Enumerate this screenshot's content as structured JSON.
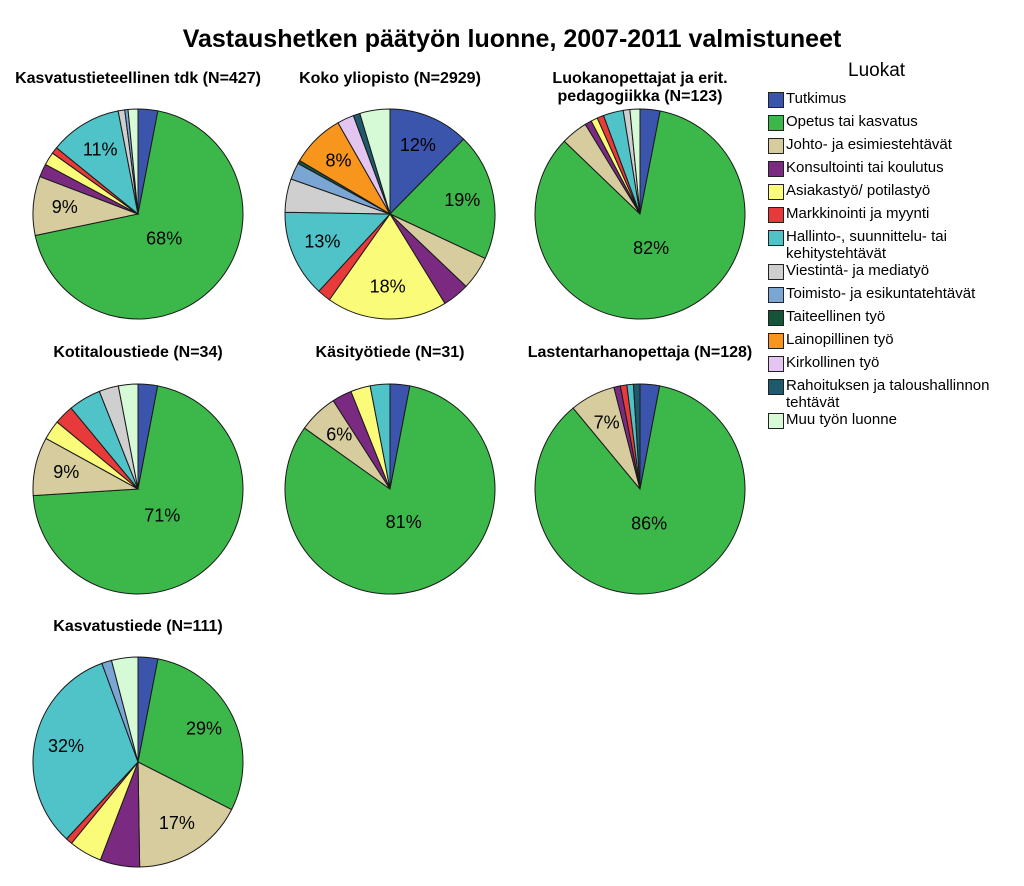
{
  "title": "Vastaushetken päätyön luonne, 2007-2011 valmistuneet",
  "legend": {
    "title": "Luokat",
    "items": [
      {
        "label": "Tutkimus",
        "color": "#3b55ad"
      },
      {
        "label": "Opetus tai kasvatus",
        "color": "#3cb84a"
      },
      {
        "label": "Johto- ja esimiestehtävät",
        "color": "#d6cc9e"
      },
      {
        "label": "Konsultointi tai koulutus",
        "color": "#7b2a82"
      },
      {
        "label": "Asiakastyö/ potilastyö",
        "color": "#fbfb7a"
      },
      {
        "label": "Markkinointi ja myynti",
        "color": "#e83a3a"
      },
      {
        "label": "Hallinto-, suunnittelu- tai kehitystehtävät",
        "color": "#4fc3c8"
      },
      {
        "label": "Viestintä- ja mediatyö",
        "color": "#cfcfcf"
      },
      {
        "label": "Toimisto- ja esikuntatehtävät",
        "color": "#7ba6d4"
      },
      {
        "label": "Taiteellinen työ",
        "color": "#16543a"
      },
      {
        "label": "Lainopillinen työ",
        "color": "#f7951d"
      },
      {
        "label": "Kirkollinen työ",
        "color": "#e2c5f0"
      },
      {
        "label": "Rahoituksen ja taloushallinnon tehtävät",
        "color": "#1e5a6c"
      },
      {
        "label": "Muu työn luonne",
        "color": "#d6fad6"
      }
    ]
  },
  "chart_data": [
    {
      "type": "pie",
      "title": "Kasvatustieteellinen tdk (N=427)",
      "categories": [
        "Tutkimus",
        "Opetus tai kasvatus",
        "Johto- ja esimiestehtävät",
        "Konsultointi tai koulutus",
        "Asiakastyö/ potilastyö",
        "Markkinointi ja myynti",
        "Hallinto-, suunnittelu- tai kehitystehtävät",
        "Viestintä- ja mediatyö",
        "Toimisto- ja esikuntatehtävät",
        "Taiteellinen työ",
        "Lainopillinen työ",
        "Kirkollinen työ",
        "Rahoituksen ja taloushallinnon tehtävät",
        "Muu työn luonne"
      ],
      "values": [
        3,
        68,
        9,
        2,
        2,
        1,
        11,
        1,
        0.5,
        0,
        0,
        0,
        0,
        1.5
      ],
      "labels": [
        "",
        "68%",
        "9%",
        "",
        "",
        "",
        "11%",
        "",
        "",
        "",
        "",
        "",
        "",
        ""
      ]
    },
    {
      "type": "pie",
      "title": "Koko yliopisto (N=2929)",
      "categories": [
        "Tutkimus",
        "Opetus tai kasvatus",
        "Johto- ja esimiestehtävät",
        "Konsultointi tai koulutus",
        "Asiakastyö/ potilastyö",
        "Markkinointi ja myynti",
        "Hallinto-, suunnittelu- tai kehitystehtävät",
        "Viestintä- ja mediatyö",
        "Toimisto- ja esikuntatehtävät",
        "Taiteellinen työ",
        "Lainopillinen työ",
        "Kirkollinen työ",
        "Rahoituksen ja taloushallinnon tehtävät",
        "Muu työn luonne"
      ],
      "values": [
        12,
        19,
        5,
        4,
        18,
        2,
        13,
        5,
        2.5,
        0.5,
        8,
        2.5,
        1,
        4.5
      ],
      "labels": [
        "12%",
        "19%",
        "",
        "",
        "18%",
        "",
        "13%",
        "",
        "",
        "",
        "8%",
        "",
        "",
        ""
      ]
    },
    {
      "type": "pie",
      "title": "Luokanopettajat ja erit. pedagogiikka (N=123)",
      "categories": [
        "Tutkimus",
        "Opetus tai kasvatus",
        "Johto- ja esimiestehtävät",
        "Konsultointi tai koulutus",
        "Asiakastyö/ potilastyö",
        "Markkinointi ja myynti",
        "Hallinto-, suunnittelu- tai kehitystehtävät",
        "Viestintä- ja mediatyö",
        "Toimisto- ja esikuntatehtävät",
        "Taiteellinen työ",
        "Lainopillinen työ",
        "Kirkollinen työ",
        "Rahoituksen ja taloushallinnon tehtävät",
        "Muu työn luonne"
      ],
      "values": [
        3,
        82,
        4,
        1,
        1,
        1,
        3,
        1,
        0,
        0,
        0,
        0,
        0,
        1.5
      ],
      "labels": [
        "",
        "82%",
        "",
        "",
        "",
        "",
        "",
        "",
        "",
        "",
        "",
        "",
        "",
        ""
      ]
    },
    {
      "type": "pie",
      "title": "Kotitaloustiede (N=34)",
      "categories": [
        "Tutkimus",
        "Opetus tai kasvatus",
        "Johto- ja esimiestehtävät",
        "Konsultointi tai koulutus",
        "Asiakastyö/ potilastyö",
        "Markkinointi ja myynti",
        "Hallinto-, suunnittelu- tai kehitystehtävät",
        "Viestintä- ja mediatyö",
        "Toimisto- ja esikuntatehtävät",
        "Taiteellinen työ",
        "Lainopillinen työ",
        "Kirkollinen työ",
        "Rahoituksen ja taloushallinnon tehtävät",
        "Muu työn luonne"
      ],
      "values": [
        3,
        71,
        9,
        0,
        3,
        3,
        5,
        3,
        0,
        0,
        0,
        0,
        0,
        3
      ],
      "labels": [
        "",
        "71%",
        "9%",
        "",
        "",
        "",
        "",
        "",
        "",
        "",
        "",
        "",
        "",
        ""
      ]
    },
    {
      "type": "pie",
      "title": "Käsityötiede (N=31)",
      "categories": [
        "Tutkimus",
        "Opetus tai kasvatus",
        "Johto- ja esimiestehtävät",
        "Konsultointi tai koulutus",
        "Asiakastyö/ potilastyö",
        "Markkinointi ja myynti",
        "Hallinto-, suunnittelu- tai kehitystehtävät",
        "Viestintä- ja mediatyö",
        "Toimisto- ja esikuntatehtävät",
        "Taiteellinen työ",
        "Lainopillinen työ",
        "Kirkollinen työ",
        "Rahoituksen ja taloushallinnon tehtävät",
        "Muu työn luonne"
      ],
      "values": [
        3,
        81,
        6,
        3,
        3,
        0,
        3,
        0,
        0,
        0,
        0,
        0,
        0,
        0
      ],
      "labels": [
        "",
        "81%",
        "6%",
        "",
        "",
        "",
        "",
        "",
        "",
        "",
        "",
        "",
        "",
        ""
      ]
    },
    {
      "type": "pie",
      "title": "Lastentarhanopettaja (N=128)",
      "categories": [
        "Tutkimus",
        "Opetus tai kasvatus",
        "Johto- ja esimiestehtävät",
        "Konsultointi tai koulutus",
        "Asiakastyö/ potilastyö",
        "Markkinointi ja myynti",
        "Hallinto-, suunnittelu- tai kehitystehtävät",
        "Viestintä- ja mediatyö",
        "Toimisto- ja esikuntatehtävät",
        "Taiteellinen työ",
        "Lainopillinen työ",
        "Kirkollinen työ",
        "Rahoituksen ja taloushallinnon tehtävät",
        "Muu työn luonne"
      ],
      "values": [
        3,
        86,
        7,
        1,
        0,
        1,
        1,
        0,
        0,
        0,
        0,
        0,
        1,
        0
      ],
      "labels": [
        "",
        "86%",
        "7%",
        "",
        "",
        "",
        "",
        "",
        "",
        "",
        "",
        "",
        "",
        ""
      ]
    },
    {
      "type": "pie",
      "title": "Kasvatustiede (N=111)",
      "categories": [
        "Tutkimus",
        "Opetus tai kasvatus",
        "Johto- ja esimiestehtävät",
        "Konsultointi tai koulutus",
        "Asiakastyö/ potilastyö",
        "Markkinointi ja myynti",
        "Hallinto-, suunnittelu- tai kehitystehtävät",
        "Viestintä- ja mediatyö",
        "Toimisto- ja esikuntatehtävät",
        "Taiteellinen työ",
        "Lainopillinen työ",
        "Kirkollinen työ",
        "Rahoituksen ja taloushallinnon tehtävät",
        "Muu työn luonne"
      ],
      "values": [
        3,
        29,
        17,
        6,
        5,
        1,
        32,
        0,
        1.5,
        0,
        0,
        0,
        0,
        4
      ],
      "labels": [
        "",
        "29%",
        "17%",
        "",
        "",
        "",
        "32%",
        "",
        "",
        "",
        "",
        "",
        "",
        ""
      ]
    }
  ]
}
